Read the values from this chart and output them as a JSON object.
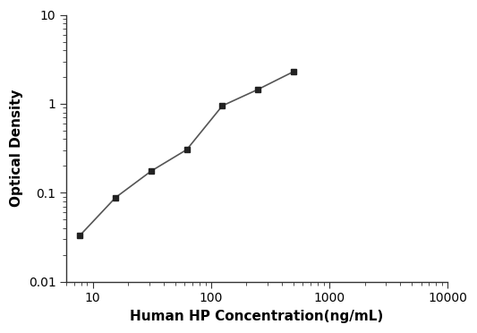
{
  "x": [
    7.8,
    15.6,
    31.25,
    62.5,
    125,
    250,
    500
  ],
  "y": [
    0.033,
    0.088,
    0.175,
    0.305,
    0.95,
    1.45,
    2.3
  ],
  "xlabel": "Human HP Concentration(ng/mL)",
  "ylabel": "Optical Density",
  "xlim": [
    6.0,
    10000
  ],
  "ylim": [
    0.01,
    10
  ],
  "line_color": "#555555",
  "marker_color": "#222222",
  "marker": "s",
  "marker_size": 5,
  "line_width": 1.2,
  "background_color": "#ffffff",
  "xlabel_fontsize": 11,
  "ylabel_fontsize": 11,
  "tick_fontsize": 10,
  "spine_color": "#333333"
}
